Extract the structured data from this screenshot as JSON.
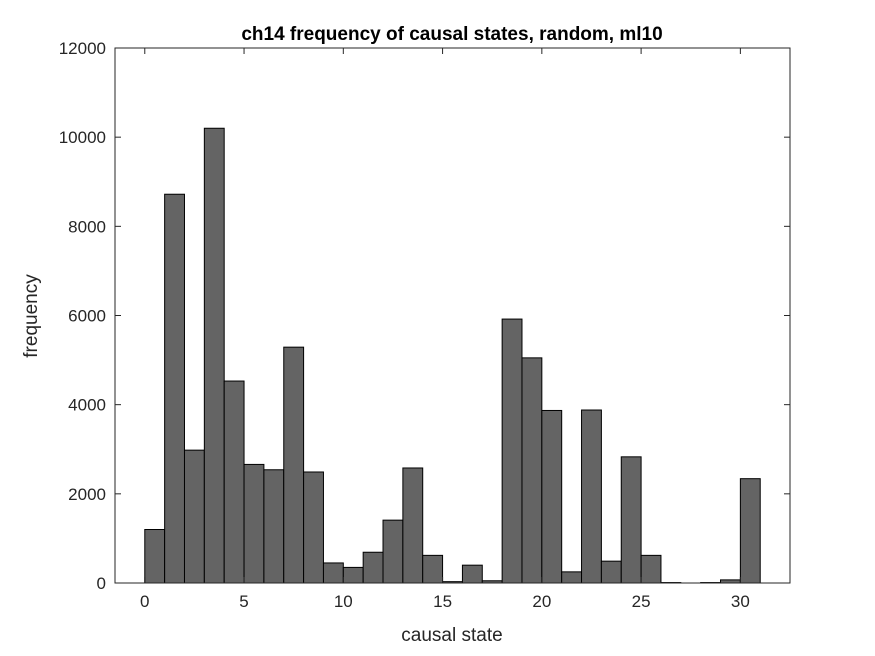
{
  "chart_data": {
    "type": "bar",
    "title": "ch14 frequency of causal states, random, ml10",
    "xlabel": "causal state",
    "ylabel": "frequency",
    "xlim": [
      -1.5,
      32.5
    ],
    "ylim": [
      0,
      12000
    ],
    "xticks": [
      0,
      5,
      10,
      15,
      20,
      25,
      30
    ],
    "yticks": [
      0,
      2000,
      4000,
      6000,
      8000,
      10000,
      12000
    ],
    "bin_edges": [
      0,
      1,
      2,
      3,
      4,
      5,
      6,
      7,
      8,
      9,
      10,
      11,
      12,
      13,
      14,
      15,
      16,
      17,
      18,
      19,
      20,
      21,
      22,
      23,
      24,
      25,
      26,
      27,
      28,
      29,
      30,
      31
    ],
    "values": [
      1200,
      8720,
      2980,
      10200,
      4530,
      2660,
      2540,
      5290,
      2490,
      450,
      350,
      690,
      1410,
      2580,
      620,
      30,
      400,
      50,
      5920,
      5050,
      3870,
      250,
      3880,
      490,
      2830,
      620,
      10,
      0,
      10,
      70,
      2340
    ],
    "bar_color": "#646464",
    "edge_color": "#000000",
    "grid": false
  }
}
